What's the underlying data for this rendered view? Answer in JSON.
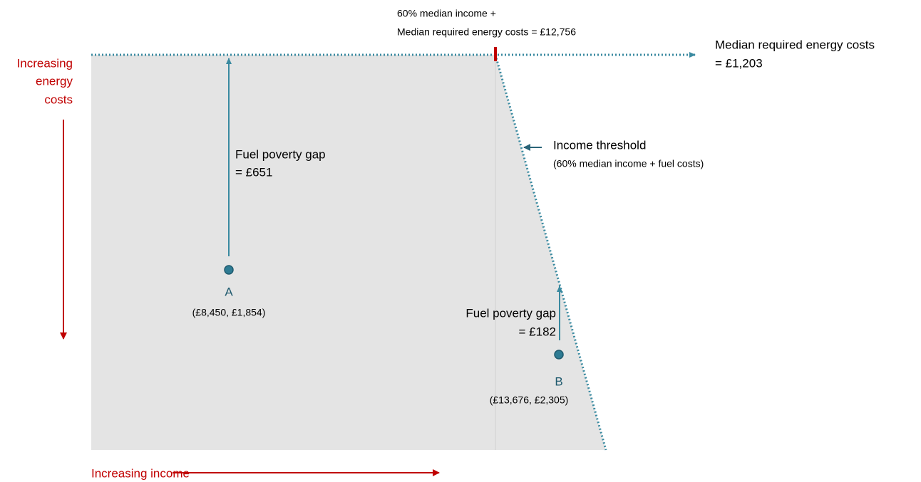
{
  "labels": {
    "threshold_top_line1": "60% median income +",
    "threshold_top_line2": "Median required energy costs = £12,756",
    "median_costs_line1": "Median required energy costs",
    "median_costs_line2": "= £1,203",
    "y_axis": [
      "Increasing",
      "energy",
      "costs"
    ],
    "x_axis": "Increasing income",
    "income_threshold": "Income threshold",
    "income_threshold_note": "(60% median income + fuel costs)"
  },
  "points": [
    {
      "name": "A",
      "coords": "(£8,450, £1,854)",
      "gap_line1": "Fuel poverty gap",
      "gap_line2": "= £651"
    },
    {
      "name": "B",
      "coords": "(£13,676, £2,305)",
      "gap_line1": "Fuel poverty gap",
      "gap_line2": "= £182"
    }
  ]
}
